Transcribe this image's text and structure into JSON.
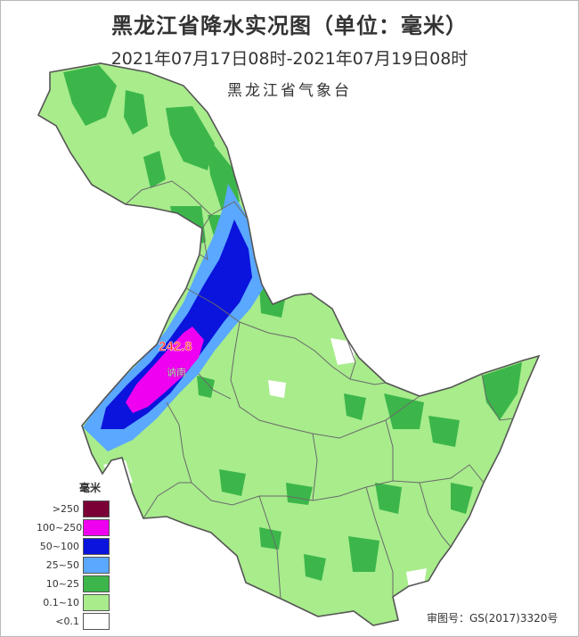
{
  "header": {
    "title": "黑龙江省降水实况图（单位：毫米）",
    "period": "2021年07月17日08时-2021年07月19日08时",
    "agency": "黑龙江省气象台"
  },
  "map": {
    "max_value": "242.8",
    "max_station": "讷南"
  },
  "legend": {
    "unit": "毫米",
    "items": [
      {
        "label": ">250",
        "color": "#7a0036"
      },
      {
        "label": "100~250",
        "color": "#f000f0"
      },
      {
        "label": "50~100",
        "color": "#0a14dc"
      },
      {
        "label": "25~50",
        "color": "#5aa8ff"
      },
      {
        "label": "10~25",
        "color": "#3cb64a"
      },
      {
        "label": "0.1~10",
        "color": "#a8ec8c"
      },
      {
        "label": "<0.1",
        "color": "#ffffff"
      }
    ]
  },
  "footer": {
    "review_number": "审图号：GS(2017)3320号"
  },
  "colors": {
    "light_green": "#a8ec8c",
    "green": "#3cb64a",
    "light_blue": "#5aa8ff",
    "blue": "#0a14dc",
    "magenta": "#f000f0",
    "max_label": "#ff2a2a",
    "boundary": "#555555"
  }
}
